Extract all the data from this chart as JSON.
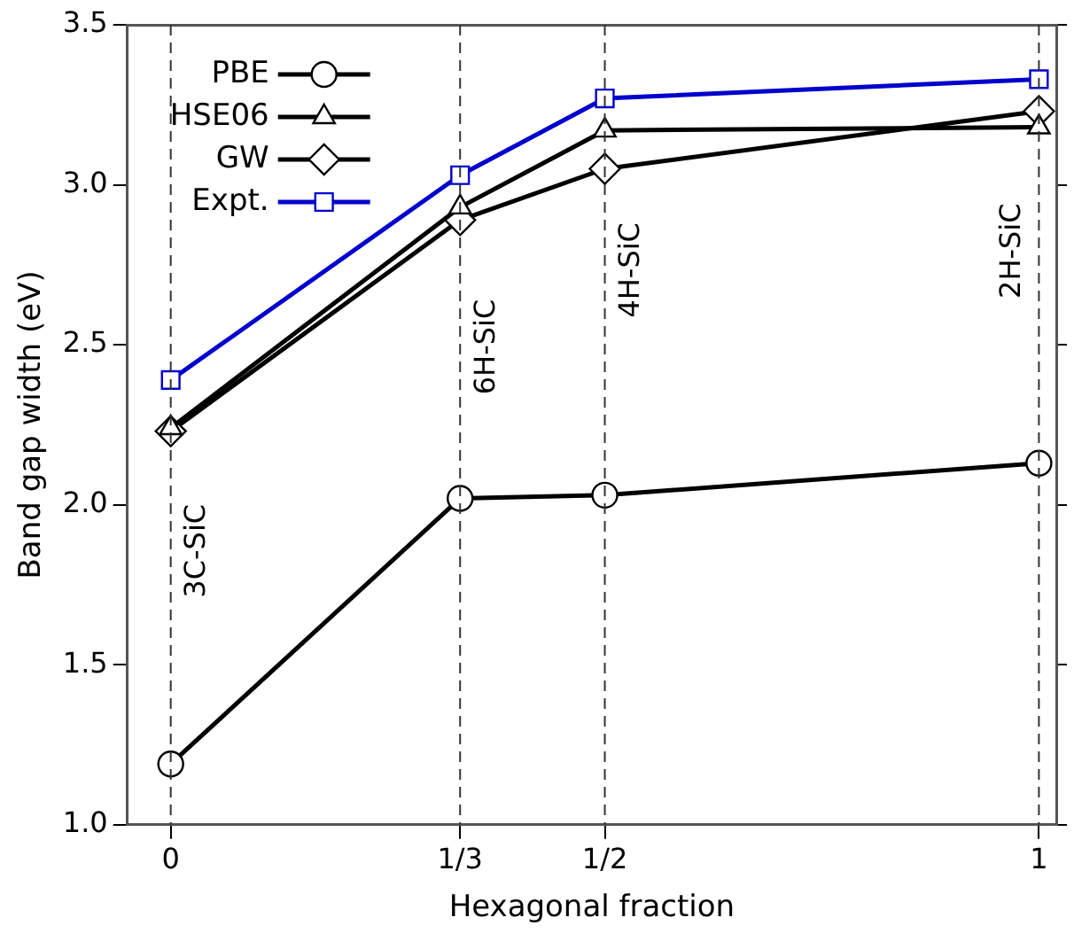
{
  "chart_data": {
    "type": "line",
    "xlabel": "Hexagonal fraction",
    "ylabel": "Band gap width (eV)",
    "x": [
      0,
      0.3333,
      0.5,
      1
    ],
    "series": [
      {
        "name": "PBE",
        "color": "#000000",
        "marker": "circle",
        "values": [
          1.19,
          2.02,
          2.03,
          2.13
        ]
      },
      {
        "name": "HSE06",
        "color": "#000000",
        "marker": "triangle",
        "values": [
          2.24,
          2.93,
          3.17,
          3.18
        ]
      },
      {
        "name": "GW",
        "color": "#000000",
        "marker": "diamond",
        "values": [
          2.23,
          2.89,
          3.05,
          3.23
        ]
      },
      {
        "name": "Expt.",
        "color": "#0000cc",
        "marker": "square",
        "values": [
          2.39,
          3.03,
          3.27,
          3.33
        ]
      }
    ],
    "xlim": [
      -0.05,
      1.02
    ],
    "ylim": [
      1.0,
      3.5
    ],
    "xticks": [
      {
        "value": 0,
        "label": "0"
      },
      {
        "value": 0.3333,
        "label": "1/3"
      },
      {
        "value": 0.5,
        "label": "1/2"
      },
      1
    ],
    "yticks": [
      {
        "value": 1.0,
        "label": "1.0"
      },
      1.5,
      {
        "value": 2.0,
        "label": "2.0"
      },
      2.5,
      {
        "value": 3.0,
        "label": "3.0"
      },
      3.5
    ],
    "ref_lines": [
      {
        "axis": "x",
        "value": 0,
        "label": "3C-SiC",
        "line_style": "dashed"
      },
      {
        "axis": "x",
        "value": 0.3333,
        "label": "6H-SiC",
        "line_style": "dashed"
      },
      {
        "axis": "x",
        "value": 0.5,
        "label": "4H-SiC",
        "line_style": "dashed"
      },
      {
        "axis": "x",
        "value": 1,
        "label": "2H-SiC",
        "line_style": "dashed"
      }
    ],
    "grid": false,
    "legend": "top left",
    "line_style": "solid"
  }
}
